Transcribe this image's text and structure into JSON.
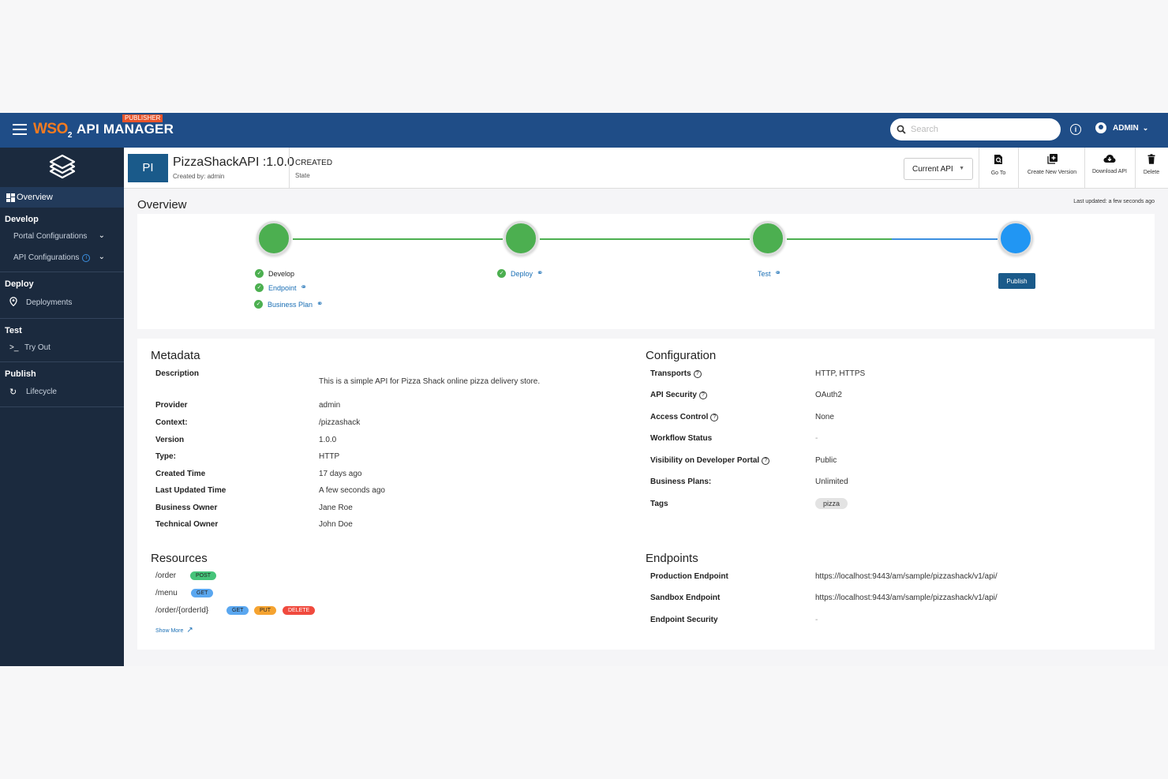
{
  "topbar": {
    "badge": "PUBLISHER",
    "logo_wso": "WSO",
    "logo_sub": "2",
    "product": "API MANAGER",
    "search_placeholder": "Search",
    "user": "ADMIN"
  },
  "sidebar": {
    "overview": "Overview",
    "develop": "Develop",
    "portal_configurations": "Portal Configurations",
    "api_configurations": "API Configurations",
    "deploy": "Deploy",
    "deployments": "Deployments",
    "test": "Test",
    "try_out": "Try Out",
    "publish": "Publish",
    "lifecycle": "Lifecycle"
  },
  "api": {
    "initials": "PI",
    "name": "PizzaShackAPI :1.0.0",
    "created_by": "Created by: admin",
    "state": "CREATED",
    "state_label": "State"
  },
  "toolbar": {
    "current_api": "Current API",
    "go_to": "Go To",
    "create_new_version": "Create New Version",
    "download_api": "Download API",
    "delete": "Delete"
  },
  "overview": {
    "title": "Overview",
    "last_updated": "Last updated: a few seconds ago",
    "develop": "Develop",
    "endpoint": "Endpoint",
    "business_plan": "Business Plan",
    "deploy": "Deploy",
    "test": "Test",
    "publish": "Publish"
  },
  "metadata": {
    "title": "Metadata",
    "rows": [
      {
        "label": "Description",
        "value": "This is a simple API for Pizza Shack online pizza delivery store."
      },
      {
        "label": "Provider",
        "value": "admin"
      },
      {
        "label": "Context:",
        "value": "/pizzashack"
      },
      {
        "label": "Version",
        "value": "1.0.0"
      },
      {
        "label": "Type:",
        "value": "HTTP"
      },
      {
        "label": "Created Time",
        "value": "17 days ago"
      },
      {
        "label": "Last Updated Time",
        "value": "A few seconds ago"
      },
      {
        "label": "Business Owner",
        "value": "Jane Roe"
      },
      {
        "label": "Technical Owner",
        "value": "John Doe"
      }
    ]
  },
  "configuration": {
    "title": "Configuration",
    "rows": [
      {
        "label": "Transports",
        "value": "HTTP, HTTPS"
      },
      {
        "label": "API Security",
        "value": "OAuth2"
      },
      {
        "label": "Access Control",
        "value": "None"
      },
      {
        "label": "Workflow Status",
        "value": "-"
      },
      {
        "label": "Visibility on Developer Portal",
        "value": "Public"
      },
      {
        "label": "Business Plans:",
        "value": "Unlimited"
      },
      {
        "label": "Tags",
        "value": "pizza"
      }
    ]
  },
  "resources": {
    "title": "Resources",
    "items": [
      {
        "path": "/order",
        "methods": [
          "POST"
        ]
      },
      {
        "path": "/menu",
        "methods": [
          "GET"
        ]
      },
      {
        "path": "/order/{orderId}",
        "methods": [
          "GET",
          "PUT",
          "DELETE"
        ]
      }
    ],
    "show_more": "Show More"
  },
  "endpoints": {
    "title": "Endpoints",
    "rows": [
      {
        "label": "Production Endpoint",
        "value": "https://localhost:9443/am/sample/pizzashack/v1/api/"
      },
      {
        "label": "Sandbox Endpoint",
        "value": "https://localhost:9443/am/sample/pizzashack/v1/api/"
      },
      {
        "label": "Endpoint Security",
        "value": "-"
      }
    ]
  },
  "colors": {
    "topbar": "#1f4d87",
    "sidebar": "#1b2a3e",
    "step_done": "#4caf50",
    "step_current": "#2196f3",
    "publisher_badge": "#e8542a"
  }
}
